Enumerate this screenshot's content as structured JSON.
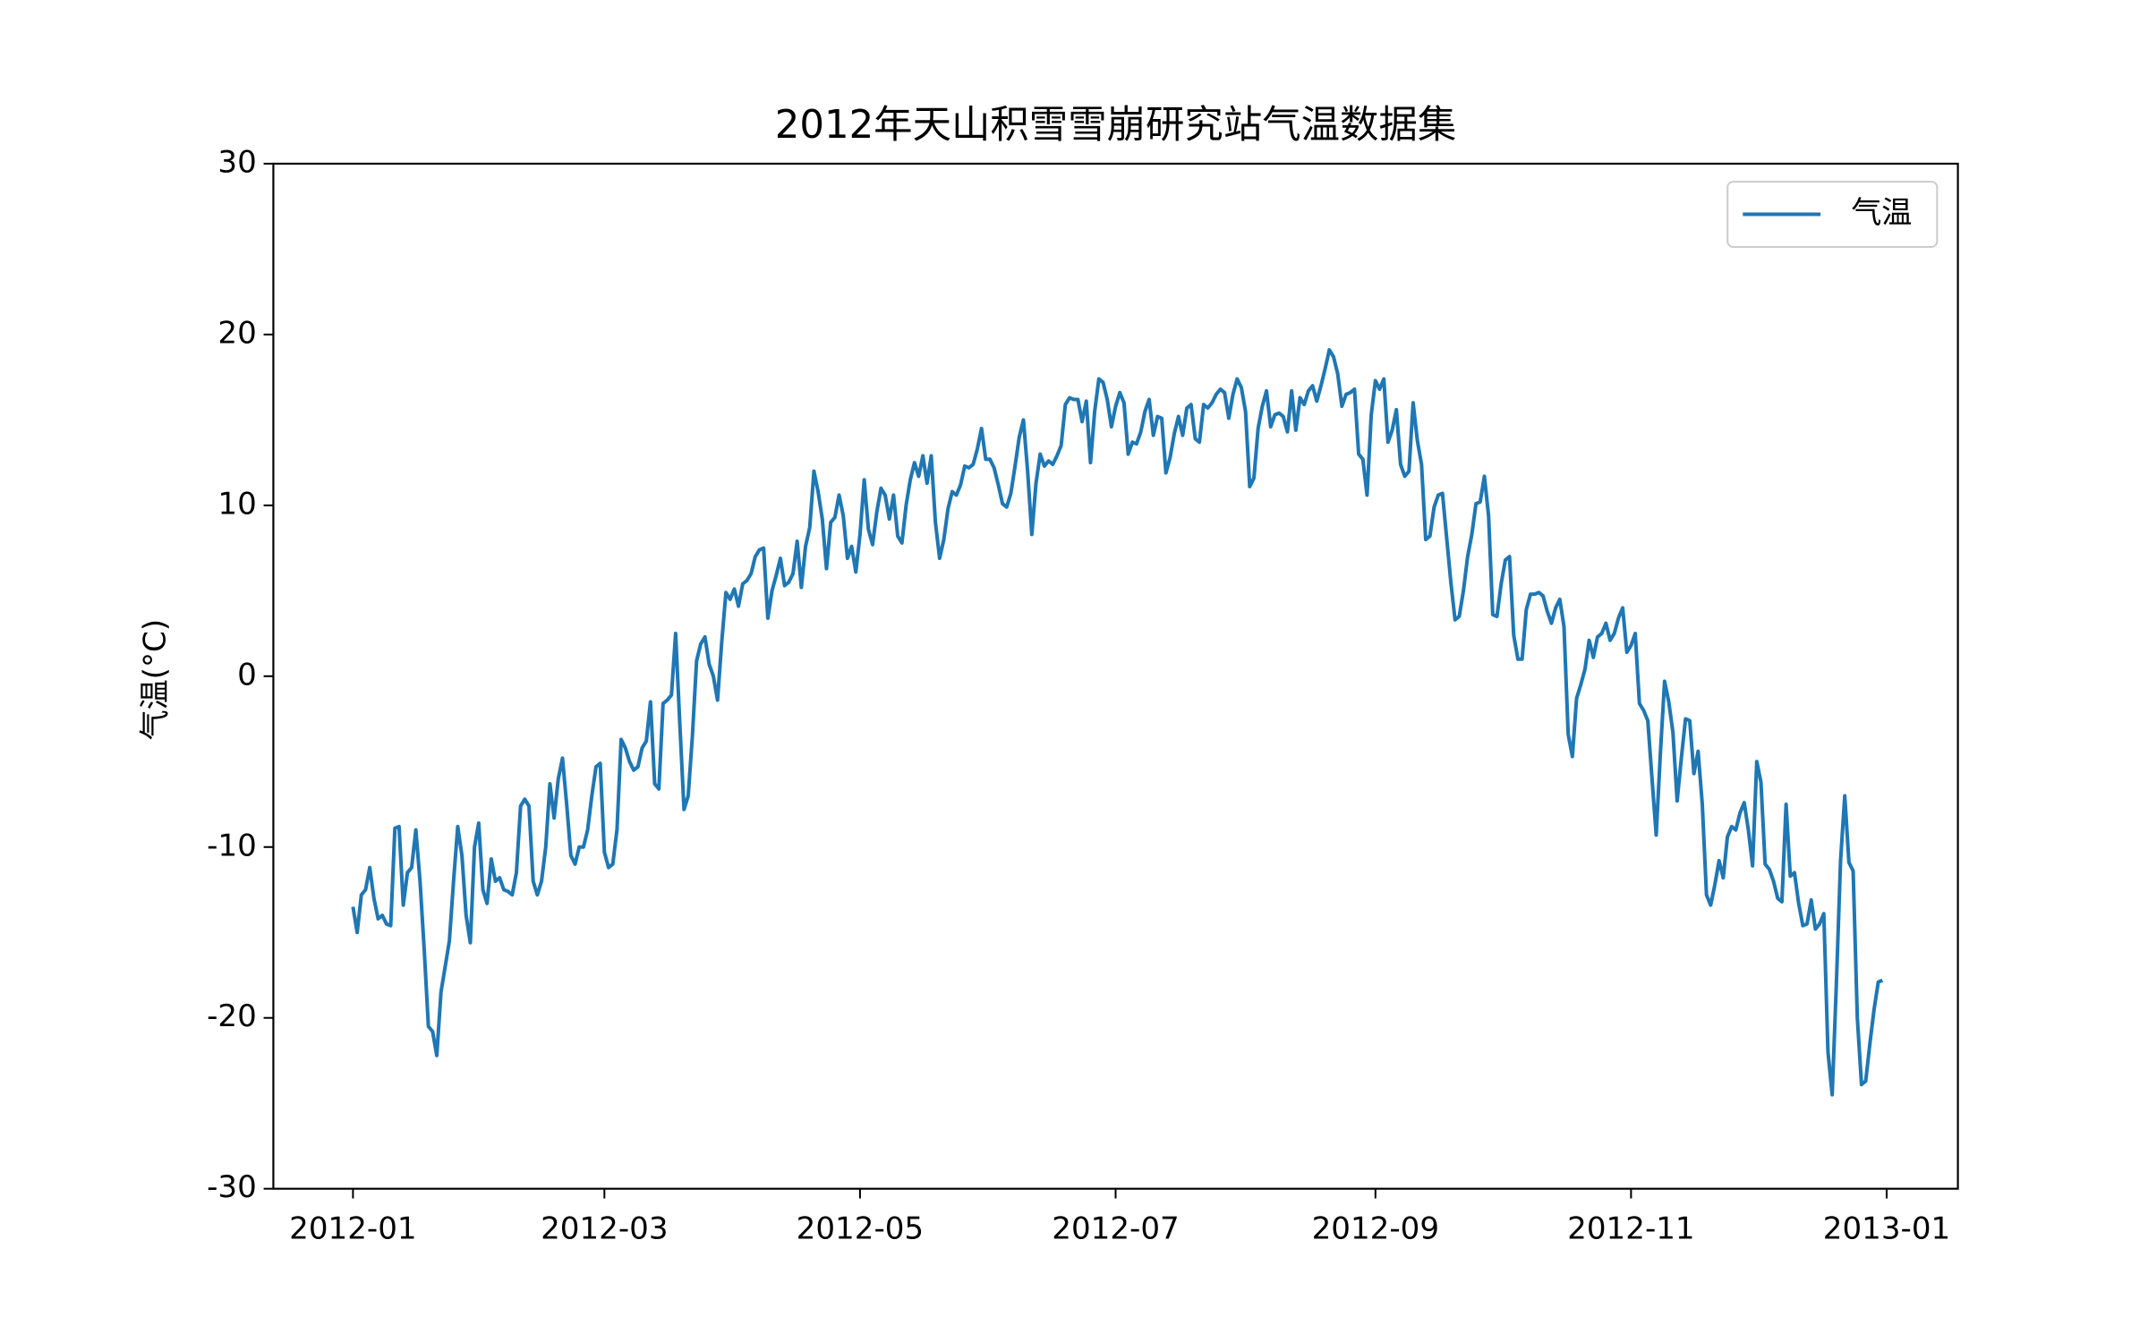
{
  "chart_data": {
    "type": "line",
    "title": "2012年天山积雪雪崩研究站气温数据集",
    "ylabel": "气温(°C)",
    "legend": "upper right",
    "grid": false,
    "xlim": [
      "2011-12-13",
      "2013-01-18"
    ],
    "xticks": [
      {
        "value": "2012-01-01",
        "label": "2012-01"
      },
      {
        "value": "2012-03-01",
        "label": "2012-03"
      },
      {
        "value": "2012-05-01",
        "label": "2012-05"
      },
      {
        "value": "2012-07-01",
        "label": "2012-07"
      },
      {
        "value": "2012-09-01",
        "label": "2012-09"
      },
      {
        "value": "2012-11-01",
        "label": "2012-11"
      },
      {
        "value": "2013-01-01",
        "label": "2013-01"
      }
    ],
    "ylim": [
      -30,
      30
    ],
    "yticks": [
      -30,
      -20,
      -10,
      0,
      10,
      20,
      30
    ],
    "x": [
      "2012-01-01",
      "2012-01-02",
      "2012-01-03",
      "2012-01-04",
      "2012-01-05",
      "2012-01-06",
      "2012-01-07",
      "2012-01-08",
      "2012-01-09",
      "2012-01-10",
      "2012-01-11",
      "2012-01-12",
      "2012-01-13",
      "2012-01-14",
      "2012-01-15",
      "2012-01-16",
      "2012-01-17",
      "2012-01-18",
      "2012-01-19",
      "2012-01-20",
      "2012-01-21",
      "2012-01-22",
      "2012-01-23",
      "2012-01-24",
      "2012-01-25",
      "2012-01-26",
      "2012-01-27",
      "2012-01-28",
      "2012-01-29",
      "2012-01-30",
      "2012-01-31",
      "2012-02-01",
      "2012-02-02",
      "2012-02-03",
      "2012-02-04",
      "2012-02-05",
      "2012-02-06",
      "2012-02-07",
      "2012-02-08",
      "2012-02-09",
      "2012-02-10",
      "2012-02-11",
      "2012-02-12",
      "2012-02-13",
      "2012-02-14",
      "2012-02-15",
      "2012-02-16",
      "2012-02-17",
      "2012-02-18",
      "2012-02-19",
      "2012-02-20",
      "2012-02-21",
      "2012-02-22",
      "2012-02-23",
      "2012-02-24",
      "2012-02-25",
      "2012-02-26",
      "2012-02-27",
      "2012-02-28",
      "2012-02-29",
      "2012-03-01",
      "2012-03-02",
      "2012-03-03",
      "2012-03-04",
      "2012-03-05",
      "2012-03-06",
      "2012-03-07",
      "2012-03-08",
      "2012-03-09",
      "2012-03-10",
      "2012-03-11",
      "2012-03-12",
      "2012-03-13",
      "2012-03-14",
      "2012-03-15",
      "2012-03-16",
      "2012-03-17",
      "2012-03-18",
      "2012-03-19",
      "2012-03-20",
      "2012-03-21",
      "2012-03-22",
      "2012-03-23",
      "2012-03-24",
      "2012-03-25",
      "2012-03-26",
      "2012-03-27",
      "2012-03-28",
      "2012-03-29",
      "2012-03-30",
      "2012-03-31",
      "2012-04-01",
      "2012-04-02",
      "2012-04-03",
      "2012-04-04",
      "2012-04-05",
      "2012-04-06",
      "2012-04-07",
      "2012-04-08",
      "2012-04-09",
      "2012-04-10",
      "2012-04-11",
      "2012-04-12",
      "2012-04-13",
      "2012-04-14",
      "2012-04-15",
      "2012-04-16",
      "2012-04-17",
      "2012-04-18",
      "2012-04-19",
      "2012-04-20",
      "2012-04-21",
      "2012-04-22",
      "2012-04-23",
      "2012-04-24",
      "2012-04-25",
      "2012-04-26",
      "2012-04-27",
      "2012-04-28",
      "2012-04-29",
      "2012-04-30",
      "2012-05-01",
      "2012-05-02",
      "2012-05-03",
      "2012-05-04",
      "2012-05-05",
      "2012-05-06",
      "2012-05-07",
      "2012-05-08",
      "2012-05-09",
      "2012-05-10",
      "2012-05-11",
      "2012-05-12",
      "2012-05-13",
      "2012-05-14",
      "2012-05-15",
      "2012-05-16",
      "2012-05-17",
      "2012-05-18",
      "2012-05-19",
      "2012-05-20",
      "2012-05-21",
      "2012-05-22",
      "2012-05-23",
      "2012-05-24",
      "2012-05-25",
      "2012-05-26",
      "2012-05-27",
      "2012-05-28",
      "2012-05-29",
      "2012-05-30",
      "2012-05-31",
      "2012-06-01",
      "2012-06-02",
      "2012-06-03",
      "2012-06-04",
      "2012-06-05",
      "2012-06-06",
      "2012-06-07",
      "2012-06-08",
      "2012-06-09",
      "2012-06-10",
      "2012-06-11",
      "2012-06-12",
      "2012-06-13",
      "2012-06-14",
      "2012-06-15",
      "2012-06-16",
      "2012-06-17",
      "2012-06-18",
      "2012-06-19",
      "2012-06-20",
      "2012-06-21",
      "2012-06-22",
      "2012-06-23",
      "2012-06-24",
      "2012-06-25",
      "2012-06-26",
      "2012-06-27",
      "2012-06-28",
      "2012-06-29",
      "2012-06-30",
      "2012-07-01",
      "2012-07-02",
      "2012-07-03",
      "2012-07-04",
      "2012-07-05",
      "2012-07-06",
      "2012-07-07",
      "2012-07-08",
      "2012-07-09",
      "2012-07-10",
      "2012-07-11",
      "2012-07-12",
      "2012-07-13",
      "2012-07-14",
      "2012-07-15",
      "2012-07-16",
      "2012-07-17",
      "2012-07-18",
      "2012-07-19",
      "2012-07-20",
      "2012-07-21",
      "2012-07-22",
      "2012-07-23",
      "2012-07-24",
      "2012-07-25",
      "2012-07-26",
      "2012-07-27",
      "2012-07-28",
      "2012-07-29",
      "2012-07-30",
      "2012-07-31",
      "2012-08-01",
      "2012-08-02",
      "2012-08-03",
      "2012-08-04",
      "2012-08-05",
      "2012-08-06",
      "2012-08-07",
      "2012-08-08",
      "2012-08-09",
      "2012-08-10",
      "2012-08-11",
      "2012-08-12",
      "2012-08-13",
      "2012-08-14",
      "2012-08-15",
      "2012-08-16",
      "2012-08-17",
      "2012-08-18",
      "2012-08-19",
      "2012-08-20",
      "2012-08-21",
      "2012-08-22",
      "2012-08-23",
      "2012-08-24",
      "2012-08-25",
      "2012-08-26",
      "2012-08-27",
      "2012-08-28",
      "2012-08-29",
      "2012-08-30",
      "2012-08-31",
      "2012-09-01",
      "2012-09-02",
      "2012-09-03",
      "2012-09-04",
      "2012-09-05",
      "2012-09-06",
      "2012-09-07",
      "2012-09-08",
      "2012-09-09",
      "2012-09-10",
      "2012-09-11",
      "2012-09-12",
      "2012-09-13",
      "2012-09-14",
      "2012-09-15",
      "2012-09-16",
      "2012-09-17",
      "2012-09-18",
      "2012-09-19",
      "2012-09-20",
      "2012-09-21",
      "2012-09-22",
      "2012-09-23",
      "2012-09-24",
      "2012-09-25",
      "2012-09-26",
      "2012-09-27",
      "2012-09-28",
      "2012-09-29",
      "2012-09-30",
      "2012-10-01",
      "2012-10-02",
      "2012-10-03",
      "2012-10-04",
      "2012-10-05",
      "2012-10-06",
      "2012-10-07",
      "2012-10-08",
      "2012-10-09",
      "2012-10-10",
      "2012-10-11",
      "2012-10-12",
      "2012-10-13",
      "2012-10-14",
      "2012-10-15",
      "2012-10-16",
      "2012-10-17",
      "2012-10-18",
      "2012-10-19",
      "2012-10-20",
      "2012-10-21",
      "2012-10-22",
      "2012-10-23",
      "2012-10-24",
      "2012-10-25",
      "2012-10-26",
      "2012-10-27",
      "2012-10-28",
      "2012-10-29",
      "2012-10-30",
      "2012-10-31",
      "2012-11-01",
      "2012-11-02",
      "2012-11-03",
      "2012-11-04",
      "2012-11-05",
      "2012-11-06",
      "2012-11-07",
      "2012-11-08",
      "2012-11-09",
      "2012-11-10",
      "2012-11-11",
      "2012-11-12",
      "2012-11-13",
      "2012-11-14",
      "2012-11-15",
      "2012-11-16",
      "2012-11-17",
      "2012-11-18",
      "2012-11-19",
      "2012-11-20",
      "2012-11-21",
      "2012-11-22",
      "2012-11-23",
      "2012-11-24",
      "2012-11-25",
      "2012-11-26",
      "2012-11-27",
      "2012-11-28",
      "2012-11-29",
      "2012-11-30",
      "2012-12-01",
      "2012-12-02",
      "2012-12-03",
      "2012-12-04",
      "2012-12-05",
      "2012-12-06",
      "2012-12-07",
      "2012-12-08",
      "2012-12-09",
      "2012-12-10",
      "2012-12-11",
      "2012-12-12",
      "2012-12-13",
      "2012-12-14",
      "2012-12-15",
      "2012-12-16",
      "2012-12-17",
      "2012-12-18",
      "2012-12-19",
      "2012-12-20",
      "2012-12-21",
      "2012-12-22",
      "2012-12-23",
      "2012-12-24",
      "2012-12-25",
      "2012-12-26",
      "2012-12-27",
      "2012-12-28",
      "2012-12-29",
      "2012-12-30",
      "2012-12-31"
    ],
    "series": [
      {
        "name": "气温",
        "color": "#1f77b4",
        "values": [
          -13.5,
          -15,
          -12.8,
          -12.5,
          -11.2,
          -13,
          -14.2,
          -14,
          -14.5,
          -14.6,
          -8.9,
          -8.8,
          -13.4,
          -11.5,
          -11.2,
          -9,
          -12,
          -16,
          -20.5,
          -20.8,
          -22.2,
          -18.5,
          -17,
          -15.5,
          -12,
          -8.8,
          -10.5,
          -14,
          -15.6,
          -10,
          -8.6,
          -12.5,
          -13.3,
          -10.7,
          -12,
          -11.8,
          -12.5,
          -12.6,
          -12.8,
          -11.5,
          -7.6,
          -7.2,
          -7.6,
          -12,
          -12.8,
          -12,
          -10,
          -6.3,
          -8.3,
          -6,
          -4.8,
          -7.5,
          -10.5,
          -11,
          -10,
          -10,
          -9,
          -7,
          -5.3,
          -5.1,
          -10.3,
          -11.2,
          -11,
          -9,
          -3.7,
          -4.2,
          -5,
          -5.5,
          -5.3,
          -4.2,
          -3.8,
          -1.5,
          -6.3,
          -6.6,
          -1.6,
          -1.4,
          -1.1,
          2.5,
          -2.8,
          -7.8,
          -7,
          -3.5,
          0.9,
          1.9,
          2.3,
          0.7,
          0,
          -1.4,
          2,
          4.9,
          4.5,
          5.1,
          4.1,
          5.4,
          5.6,
          6,
          7,
          7.4,
          7.5,
          3.4,
          5,
          5.9,
          6.9,
          5.3,
          5.5,
          6,
          7.9,
          5.2,
          7.6,
          8.7,
          12,
          10.8,
          9.2,
          6.3,
          9,
          9.3,
          10.6,
          9.4,
          6.9,
          7.6,
          6.1,
          8.3,
          11.5,
          8.6,
          7.7,
          9.6,
          11,
          10.6,
          9.2,
          10.6,
          8.2,
          7.8,
          10,
          11.5,
          12.5,
          11.7,
          12.9,
          11.3,
          12.9,
          9,
          6.9,
          8,
          9.8,
          10.8,
          10.6,
          11.2,
          12.3,
          12.2,
          12.4,
          13.3,
          14.5,
          12.7,
          12.7,
          12.2,
          11.2,
          10.1,
          9.9,
          10.7,
          12.3,
          14,
          15,
          12,
          8.3,
          11.3,
          13,
          12.3,
          12.6,
          12.4,
          12.9,
          13.5,
          15.9,
          16.3,
          16.2,
          16.2,
          14.9,
          16.1,
          12.5,
          15.5,
          17.4,
          17.2,
          16.2,
          14.6,
          15.8,
          16.6,
          16,
          13,
          13.7,
          13.6,
          14.3,
          15.5,
          16.2,
          14.1,
          15.2,
          15.1,
          11.9,
          12.8,
          14.2,
          15.2,
          14.1,
          15.7,
          15.9,
          13.9,
          13.7,
          15.9,
          15.7,
          16,
          16.5,
          16.8,
          16.6,
          15.1,
          16.5,
          17.4,
          16.9,
          15.5,
          11.1,
          11.6,
          14.5,
          15.8,
          16.7,
          14.6,
          15.3,
          15.4,
          15.2,
          14.3,
          16.7,
          14.4,
          16.3,
          15.9,
          16.7,
          17,
          16.1,
          17,
          18,
          19.1,
          18.7,
          17.7,
          15.8,
          16.5,
          16.6,
          16.8,
          13,
          12.7,
          10.6,
          15.3,
          17.3,
          16.8,
          17.4,
          13.7,
          14.4,
          15.6,
          12.4,
          11.7,
          12,
          16,
          13.8,
          12.4,
          8,
          8.2,
          9.9,
          10.6,
          10.7,
          8.1,
          5.5,
          3.3,
          3.5,
          5,
          7,
          8.3,
          10.1,
          10.2,
          11.7,
          9.4,
          3.6,
          3.5,
          5.4,
          6.8,
          7,
          2.4,
          1,
          1,
          3.9,
          4.8,
          4.8,
          4.9,
          4.7,
          3.8,
          3.1,
          4,
          4.5,
          2.9,
          -3.4,
          -4.7,
          -1.3,
          -0.5,
          0.4,
          2.1,
          1.1,
          2.3,
          2.5,
          3.1,
          2.1,
          2.5,
          3.4,
          4,
          1.4,
          1.8,
          2.5,
          -1.6,
          -2,
          -2.6,
          -6,
          -9.3,
          -4.5,
          -0.3,
          -1.5,
          -3.3,
          -7.3,
          -4.8,
          -2.5,
          -2.6,
          -5.7,
          -4.4,
          -7.5,
          -12.8,
          -13.4,
          -12.2,
          -10.8,
          -11.8,
          -9.4,
          -8.8,
          -9,
          -8,
          -7.4,
          -9,
          -11.1,
          -5,
          -6.2,
          -11,
          -11.3,
          -12,
          -13,
          -13.2,
          -7.5,
          -11.7,
          -11.5,
          -13.3,
          -14.6,
          -14.5,
          -13.1,
          -14.8,
          -14.5,
          -13.9,
          -22,
          -24.5,
          -18,
          -10.8,
          -7,
          -10.9,
          -11.4,
          -20,
          -23.9,
          -23.7,
          -21.5,
          -19.5,
          -17.9,
          -17.8
        ]
      }
    ]
  }
}
